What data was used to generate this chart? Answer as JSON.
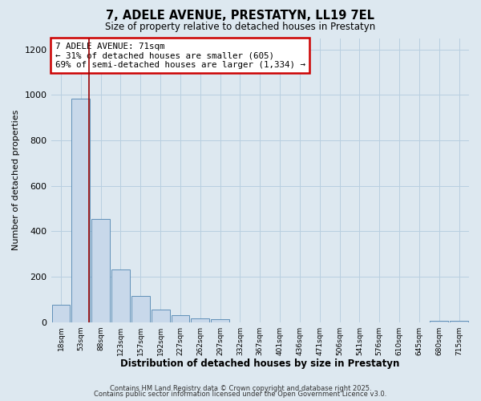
{
  "title": "7, ADELE AVENUE, PRESTATYN, LL19 7EL",
  "subtitle": "Size of property relative to detached houses in Prestatyn",
  "xlabel": "Distribution of detached houses by size in Prestatyn",
  "ylabel": "Number of detached properties",
  "bar_labels": [
    "18sqm",
    "53sqm",
    "88sqm",
    "123sqm",
    "157sqm",
    "192sqm",
    "227sqm",
    "262sqm",
    "297sqm",
    "332sqm",
    "367sqm",
    "401sqm",
    "436sqm",
    "471sqm",
    "506sqm",
    "541sqm",
    "576sqm",
    "610sqm",
    "645sqm",
    "680sqm",
    "715sqm"
  ],
  "bar_values": [
    75,
    985,
    455,
    230,
    115,
    55,
    30,
    15,
    13,
    0,
    0,
    0,
    0,
    0,
    0,
    0,
    0,
    0,
    0,
    5,
    5
  ],
  "bar_color": "#c8d8ea",
  "bar_edge_color": "#6090b8",
  "background_color": "#dde8f0",
  "grid_color": "#b8cfe0",
  "red_line_x": 1.42,
  "annotation_title": "7 ADELE AVENUE: 71sqm",
  "annotation_line1": "← 31% of detached houses are smaller (605)",
  "annotation_line2": "69% of semi-detached houses are larger (1,334) →",
  "annotation_box_color": "#ffffff",
  "annotation_box_edge": "#cc0000",
  "red_line_color": "#990000",
  "ylim": [
    0,
    1250
  ],
  "yticks": [
    0,
    200,
    400,
    600,
    800,
    1000,
    1200
  ],
  "footer1": "Contains HM Land Registry data © Crown copyright and database right 2025.",
  "footer2": "Contains public sector information licensed under the Open Government Licence v3.0."
}
